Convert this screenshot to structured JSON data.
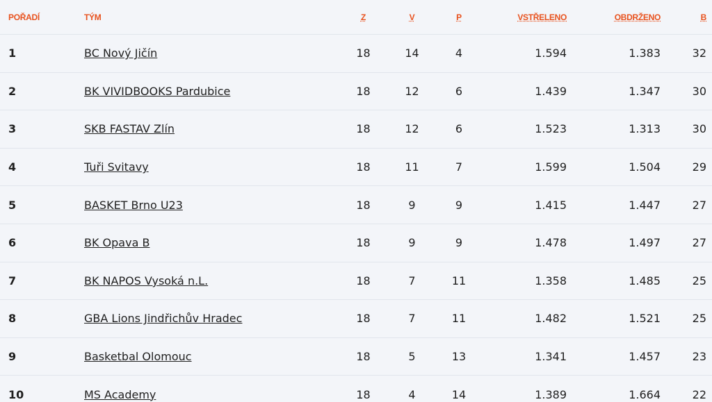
{
  "table": {
    "header": [
      "POŘADÍ",
      "TÝM",
      "Z",
      "V",
      "P",
      "VSTŘELENO",
      "OBDRŽENO",
      "B"
    ],
    "rows": [
      [
        "1",
        "BC Nový Jičín",
        "18",
        "14",
        "4",
        "1.594",
        "1.383",
        "32"
      ],
      [
        "2",
        "BK VIVIDBOOKS Pardubice",
        "18",
        "12",
        "6",
        "1.439",
        "1.347",
        "30"
      ],
      [
        "3",
        "SKB FASTAV Zlín",
        "18",
        "12",
        "6",
        "1.523",
        "1.313",
        "30"
      ],
      [
        "4",
        "Tuři Svitavy",
        "18",
        "11",
        "7",
        "1.599",
        "1.504",
        "29"
      ],
      [
        "5",
        "BASKET Brno U23",
        "18",
        "9",
        "9",
        "1.415",
        "1.447",
        "27"
      ],
      [
        "6",
        "BK Opava B",
        "18",
        "9",
        "9",
        "1.478",
        "1.497",
        "27"
      ],
      [
        "7",
        "BK NAPOS Vysoká n.L.",
        "18",
        "7",
        "11",
        "1.358",
        "1.485",
        "25"
      ],
      [
        "8",
        "GBA Lions Jindřichův Hradec",
        "18",
        "7",
        "11",
        "1.482",
        "1.521",
        "25"
      ],
      [
        "9",
        "Basketbal Olomouc",
        "18",
        "5",
        "13",
        "1.341",
        "1.457",
        "23"
      ],
      [
        "10",
        "MS Academy",
        "18",
        "4",
        "14",
        "1.389",
        "1.664",
        "22"
      ]
    ]
  }
}
